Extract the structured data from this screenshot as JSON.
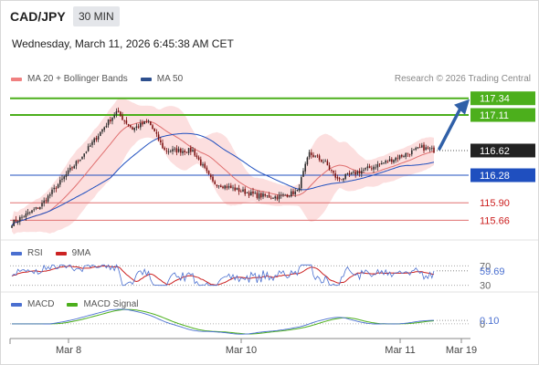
{
  "header": {
    "symbol": "CAD/JPY",
    "interval": "30 MIN",
    "timestamp": "Wednesday, March 11, 2026 6:45:38 AM CET"
  },
  "legend": {
    "ma20": {
      "label": "MA 20 + Bollinger Bands",
      "color": "#f08080"
    },
    "ma50": {
      "label": "MA 50",
      "color": "#2d4f8e"
    }
  },
  "credit": "Research © 2026 Trading Central",
  "colors": {
    "resistance": "#4caf1c",
    "pivot": "#1f4fbf",
    "support": "#e07070",
    "band_fill": "#fbd9d9",
    "candle_up": "#2a2a2a",
    "candle_down": "#7a0f0f",
    "rsi": "#4a6fd0",
    "rsi_ma": "#cc2222",
    "macd": "#4a6fd0",
    "macd_signal": "#4caf1c",
    "arrow": "#3060a8",
    "current_tag": "#222222"
  },
  "chart_data": [
    {
      "type": "candlestick",
      "series": [
        {
          "name": "MA 20 + Bollinger Bands"
        },
        {
          "name": "MA 50"
        }
      ],
      "levels": [
        {
          "value": 117.34,
          "label": "117.34",
          "kind": "resistance"
        },
        {
          "value": 117.11,
          "label": "117.11",
          "kind": "resistance"
        },
        {
          "value": 116.62,
          "label": "116.62",
          "kind": "current"
        },
        {
          "value": 116.28,
          "label": "116.28",
          "kind": "pivot"
        },
        {
          "value": 115.9,
          "label": "115.90",
          "kind": "support"
        },
        {
          "value": 115.66,
          "label": "115.66",
          "kind": "support"
        }
      ],
      "forecast_target": 117.34,
      "x_ticks": [
        "Mar 8",
        "Mar 10",
        "Mar 11",
        "Mar 19"
      ],
      "ylim": [
        115.4,
        117.5
      ],
      "grid": false
    },
    {
      "type": "line",
      "series": [
        {
          "name": "RSI"
        },
        {
          "name": "9MA"
        }
      ],
      "current_value": 59.69,
      "value_label": "59.69",
      "axis_labels": [
        "70",
        "30"
      ],
      "ylim": [
        20,
        80
      ]
    },
    {
      "type": "line",
      "series": [
        {
          "name": "MACD"
        },
        {
          "name": "MACD Signal"
        }
      ],
      "current_value": 0.1,
      "value_label": "0.10",
      "axis_labels": [
        "0"
      ],
      "ylim": [
        -0.3,
        0.4
      ]
    }
  ]
}
